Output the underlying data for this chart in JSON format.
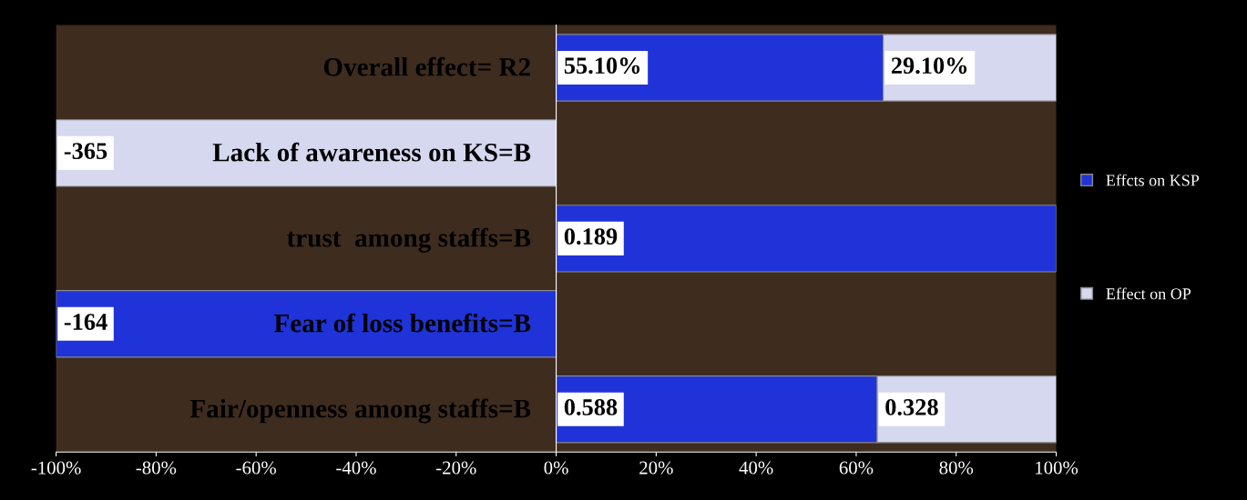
{
  "chart_data": {
    "type": "bar",
    "orientation": "horizontal",
    "stacked": true,
    "categories": [
      "Overall effect= R2",
      "Lack of awareness on KS=B",
      "trust  among staffs=B",
      "Fear of loss benefits=B",
      "Fair/openness among staffs=B"
    ],
    "series": [
      {
        "name": "Effcts on KSP",
        "color": "#1f33d8",
        "values": [
          65.4,
          null,
          100,
          -100,
          64.2
        ]
      },
      {
        "name": "Effect on OP",
        "color": "#d6d8f0",
        "values": [
          34.6,
          -100,
          null,
          null,
          35.8
        ]
      }
    ],
    "annotations": [
      {
        "text": "55.10%",
        "x": 0,
        "y": "Overall effect= R2"
      },
      {
        "text": "29.10%",
        "x": 65.4,
        "y": "Overall effect= R2"
      },
      {
        "text": "-365",
        "x": -100,
        "y": "Lack of awareness on KS=B"
      },
      {
        "text": "0.189",
        "x": 0,
        "y": "trust  among staffs=B"
      },
      {
        "text": "-164",
        "x": -100,
        "y": "Fear of loss benefits=B"
      },
      {
        "text": "0.588",
        "x": 0,
        "y": "Fair/openness among staffs=B"
      },
      {
        "text": "0.328",
        "x": 64.2,
        "y": "Fair/openness among staffs=B"
      }
    ],
    "xlim": [
      -100,
      100
    ],
    "xticks": [
      {
        "value": -100,
        "label": "-100%"
      },
      {
        "value": -80,
        "label": "-80%"
      },
      {
        "value": -60,
        "label": "-60%"
      },
      {
        "value": -40,
        "label": "-40%"
      },
      {
        "value": -20,
        "label": "-20%"
      },
      {
        "value": 0,
        "label": "0%"
      },
      {
        "value": 20,
        "label": "20%"
      },
      {
        "value": 40,
        "label": "40%"
      },
      {
        "value": 60,
        "label": "60%"
      },
      {
        "value": 80,
        "label": "80%"
      },
      {
        "value": 100,
        "label": "100%"
      }
    ],
    "grid": false,
    "legend": "right"
  }
}
